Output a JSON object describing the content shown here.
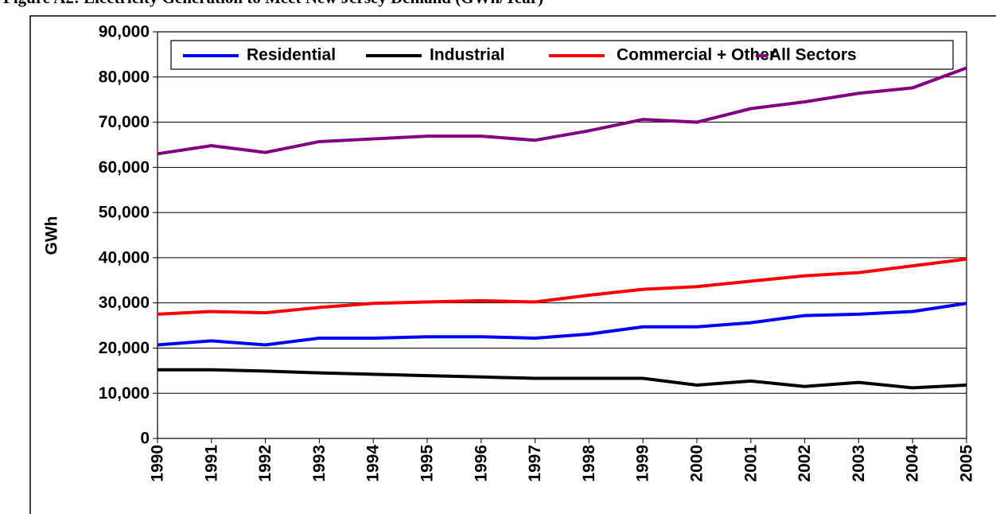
{
  "chart_data": {
    "type": "line",
    "title": "Figure A2: Electricity Generation to Meet New Jersey Demand (GWh/Year)",
    "y_label": "GWh",
    "categories": [
      "1990",
      "1991",
      "1992",
      "1993",
      "1994",
      "1995",
      "1996",
      "1997",
      "1998",
      "1999",
      "2000",
      "2001",
      "2002",
      "2003",
      "2004",
      "2005"
    ],
    "series": [
      {
        "name": "Residential",
        "color": "#0000ff",
        "values": [
          20700,
          21600,
          20700,
          22200,
          22200,
          22500,
          22500,
          22200,
          23100,
          24700,
          24700,
          25600,
          27200,
          27500,
          28100,
          29900
        ]
      },
      {
        "name": "Industrial",
        "color": "#000000",
        "values": [
          15200,
          15200,
          14900,
          14500,
          14200,
          13900,
          13600,
          13300,
          13300,
          13300,
          11800,
          12700,
          11500,
          12400,
          11200,
          11800
        ]
      },
      {
        "name": "Commercial + Other",
        "color": "#ff0000",
        "values": [
          27500,
          28100,
          27800,
          29000,
          29900,
          30200,
          30500,
          30200,
          31700,
          33000,
          33600,
          34800,
          36000,
          36700,
          38200,
          39700
        ]
      },
      {
        "name": "All Sectors",
        "color": "#800080",
        "values": [
          63000,
          64800,
          63300,
          65700,
          66300,
          66900,
          66900,
          66000,
          68100,
          70600,
          70000,
          73000,
          74500,
          76400,
          77600,
          82000
        ]
      }
    ],
    "ylim": [
      0,
      90000
    ],
    "yticks": [
      0,
      {
        "value": 10000,
        "label": "10,000"
      },
      {
        "value": 20000,
        "label": "20,000"
      },
      {
        "value": 30000,
        "label": "30,000"
      },
      {
        "value": 40000,
        "label": "40,000"
      },
      {
        "value": 50000,
        "label": "50,000"
      },
      {
        "value": 60000,
        "label": "60,000"
      },
      {
        "value": 70000,
        "label": "70,000"
      },
      {
        "value": 80000,
        "label": "80,000"
      },
      {
        "value": 90000,
        "label": "90,000"
      }
    ],
    "grid": true,
    "legend": "top"
  }
}
